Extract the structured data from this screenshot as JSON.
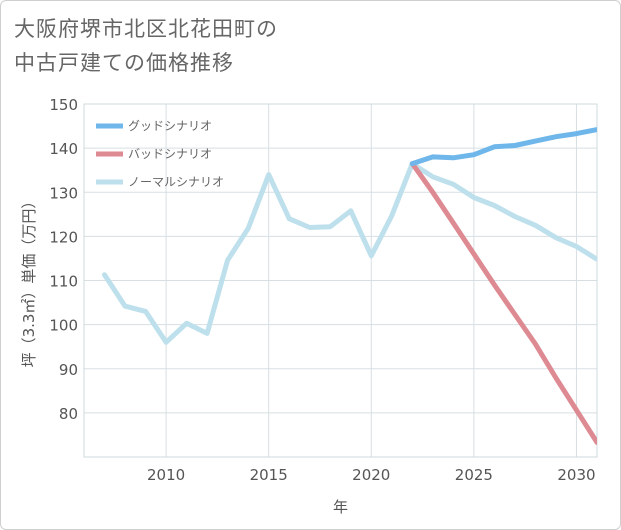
{
  "chart_title_lines": [
    "大阪府堺市北区北花田町の",
    "中古戸建ての価格推移"
  ],
  "chart_data": {
    "type": "line",
    "title": "大阪府堺市北区北花田町の中古戸建ての価格推移",
    "xlabel": "年",
    "ylabel": "坪（3.3㎡）単価（万円）",
    "xlim": [
      2006,
      2031
    ],
    "ylim": [
      70,
      150
    ],
    "xticks": [
      2010,
      2015,
      2020,
      2025,
      2030
    ],
    "yticks": [
      80,
      90,
      100,
      110,
      120,
      130,
      140,
      150
    ],
    "legend": [
      "グッドシナリオ",
      "バッドシナリオ",
      "ノーマルシナリオ"
    ],
    "series": [
      {
        "name": "グッドシナリオ",
        "color": "#6fb6ea",
        "x": [
          2022,
          2023,
          2024,
          2025,
          2026,
          2027,
          2028,
          2029,
          2030,
          2031
        ],
        "y": [
          136.5,
          138,
          137.8,
          138.5,
          140.3,
          140.6,
          141.6,
          142.6,
          143.3,
          144.2
        ]
      },
      {
        "name": "バッドシナリオ",
        "color": "#de8a92",
        "x": [
          2022,
          2023,
          2024,
          2025,
          2026,
          2027,
          2028,
          2029,
          2030,
          2031
        ],
        "y": [
          136.5,
          130,
          123,
          116,
          109,
          102.3,
          95.6,
          87.9,
          80.6,
          73.3
        ]
      },
      {
        "name": "ノーマルシナリオ",
        "color": "#bde0ec",
        "x": [
          2007,
          2008,
          2009,
          2010,
          2011,
          2012,
          2013,
          2014,
          2015,
          2016,
          2017,
          2018,
          2019,
          2020,
          2021,
          2022,
          2023,
          2024,
          2025,
          2026,
          2027,
          2028,
          2029,
          2030,
          2031
        ],
        "y": [
          111.3,
          104.2,
          103,
          96,
          100.3,
          98,
          114.6,
          121.8,
          134,
          124,
          122,
          122.2,
          125.8,
          115.6,
          124.7,
          136.5,
          133.5,
          131.8,
          128.8,
          127,
          124.5,
          122.5,
          119.7,
          117.7,
          114.8
        ]
      }
    ]
  }
}
